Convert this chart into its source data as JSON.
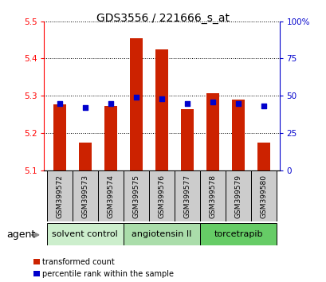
{
  "title": "GDS3556 / 221666_s_at",
  "samples": [
    "GSM399572",
    "GSM399573",
    "GSM399574",
    "GSM399575",
    "GSM399576",
    "GSM399577",
    "GSM399578",
    "GSM399579",
    "GSM399580"
  ],
  "bar_tops": [
    5.278,
    5.175,
    5.273,
    5.455,
    5.425,
    5.265,
    5.308,
    5.29,
    5.175
  ],
  "bar_base": 5.1,
  "bar_color": "#cc2200",
  "blue_pct": [
    45,
    42,
    45,
    49,
    48,
    45,
    46,
    45,
    43
  ],
  "left_ylim": [
    5.1,
    5.5
  ],
  "right_ylim": [
    0,
    100
  ],
  "left_yticks": [
    5.1,
    5.2,
    5.3,
    5.4,
    5.5
  ],
  "right_yticks": [
    0,
    25,
    50,
    75,
    100
  ],
  "right_yticklabels": [
    "0",
    "25",
    "50",
    "75",
    "100%"
  ],
  "groups": [
    {
      "label": "solvent control",
      "indices": [
        0,
        1,
        2
      ],
      "color": "#bbeeaa"
    },
    {
      "label": "angiotensin II",
      "indices": [
        3,
        4,
        5
      ],
      "color": "#aaddaa"
    },
    {
      "label": "torcetrapib",
      "indices": [
        6,
        7,
        8
      ],
      "color": "#55cc55"
    }
  ],
  "agent_label": "agent",
  "legend_red": "transformed count",
  "legend_blue": "percentile rank within the sample",
  "blue_color": "#0000cc",
  "bar_width": 0.5,
  "sample_box_color": "#cccccc",
  "bar_linewidth": 0
}
